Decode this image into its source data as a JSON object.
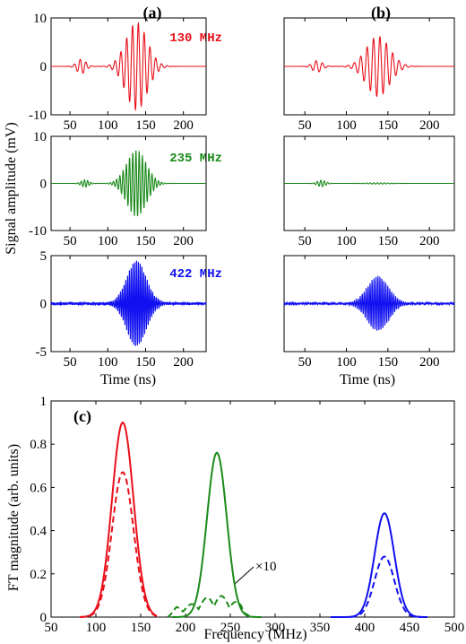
{
  "colors": {
    "red": "#e8101a",
    "green": "#1a8a1a",
    "blue": "#1010f0"
  },
  "chart_data": [
    {
      "type": "line",
      "panel_group": "(a)",
      "description_rows": [
        "130 MHz",
        "235 MHz",
        "422 MHz"
      ],
      "xlim": [
        25,
        230
      ],
      "xticks": [
        50,
        100,
        150,
        200
      ],
      "xlabel": "Time (ns)",
      "ylabel": "Signal amplitude (mV)",
      "series": [
        {
          "name": "130 MHz",
          "color": "red",
          "ylim": [
            -10,
            10
          ],
          "yticks": [
            -10,
            0,
            10
          ],
          "envelopes": [
            {
              "t0": 65,
              "width": 6,
              "amp": 1.5
            },
            {
              "t0": 138,
              "width": 14,
              "amp": 9
            }
          ],
          "carrier_mhz": 130
        },
        {
          "name": "235 MHz",
          "color": "green",
          "ylim": [
            -10,
            10
          ],
          "yticks": [
            -10,
            0,
            10
          ],
          "envelopes": [
            {
              "t0": 70,
              "width": 5,
              "amp": 0.8
            },
            {
              "t0": 138,
              "width": 13,
              "amp": 7
            }
          ],
          "carrier_mhz": 235
        },
        {
          "name": "422 MHz",
          "color": "blue",
          "ylim": [
            -5,
            5
          ],
          "yticks": [
            -5,
            0,
            5
          ],
          "envelopes": [
            {
              "t0": 138,
              "width": 13,
              "amp": 4.4
            }
          ],
          "carrier_mhz": 422,
          "noise": 0.25
        }
      ]
    },
    {
      "type": "line",
      "panel_group": "(b)",
      "xlim": [
        25,
        230
      ],
      "xticks": [
        50,
        100,
        150,
        200
      ],
      "xlabel": "Time (ns)",
      "series": [
        {
          "name": "130 MHz",
          "color": "red",
          "ylim": [
            -10,
            10
          ],
          "envelopes": [
            {
              "t0": 65,
              "width": 6,
              "amp": 1.2
            },
            {
              "t0": 138,
              "width": 14,
              "amp": 6.2
            }
          ],
          "carrier_mhz": 130
        },
        {
          "name": "235 MHz",
          "color": "green",
          "ylim": [
            -10,
            10
          ],
          "envelopes": [
            {
              "t0": 70,
              "width": 5,
              "amp": 0.7
            },
            {
              "t0": 138,
              "width": 13,
              "amp": 0.15
            }
          ],
          "carrier_mhz": 235
        },
        {
          "name": "422 MHz",
          "color": "blue",
          "ylim": [
            -5,
            5
          ],
          "envelopes": [
            {
              "t0": 138,
              "width": 13,
              "amp": 2.8
            }
          ],
          "carrier_mhz": 422,
          "noise": 0.2
        }
      ]
    },
    {
      "type": "line",
      "panel_group": "(c)",
      "xlim": [
        50,
        500
      ],
      "xticks": [
        50,
        100,
        150,
        200,
        250,
        300,
        350,
        400,
        450,
        500
      ],
      "ylim": [
        0,
        1
      ],
      "yticks": [
        0,
        0.2,
        0.4,
        0.6,
        0.8,
        1
      ],
      "xlabel": "Frequency (MHz)",
      "ylabel": "FT magnitude (arb. units)",
      "annotation": "×10",
      "series": [
        {
          "color": "red",
          "style": "solid",
          "center": 130,
          "width": 12,
          "peak": 0.9,
          "range": [
            82,
            168
          ]
        },
        {
          "color": "red",
          "style": "dashed",
          "center": 130,
          "width": 12,
          "peak": 0.67,
          "range": [
            82,
            168
          ]
        },
        {
          "color": "green",
          "style": "solid",
          "center": 235,
          "width": 11,
          "peak": 0.76,
          "range": [
            185,
            285
          ]
        },
        {
          "color": "green",
          "style": "dashed",
          "center": 235,
          "width": 11,
          "peak": 0.1,
          "range": [
            180,
            272
          ],
          "ripple": true
        },
        {
          "color": "blue",
          "style": "solid",
          "center": 422,
          "width": 11,
          "peak": 0.48,
          "range": [
            362,
            470
          ]
        },
        {
          "color": "blue",
          "style": "dashed",
          "center": 422,
          "width": 11,
          "peak": 0.28,
          "range": [
            362,
            470
          ]
        }
      ]
    }
  ],
  "labels": {
    "panel_a": "(a)",
    "panel_b": "(b)",
    "panel_c": "(c)",
    "time_label": "Time (ns)",
    "signal_label": "Signal amplitude (mV)",
    "freq_label": "Frequency (MHz)",
    "ft_label": "FT magnitude (arb. units)",
    "f130": "130 MHz",
    "f235": "235 MHz",
    "f422": "422 MHz",
    "x10": "×10"
  }
}
